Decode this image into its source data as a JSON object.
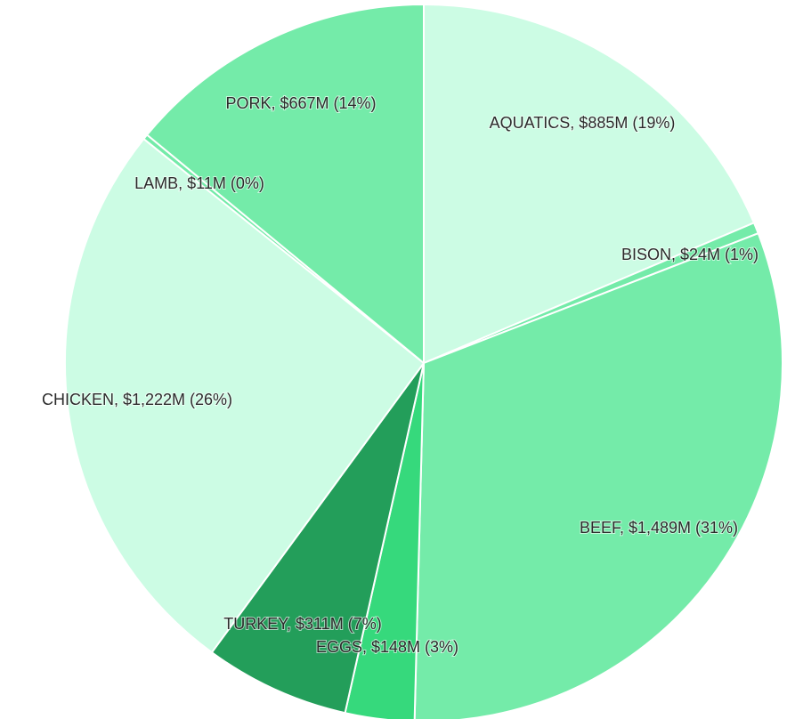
{
  "chart_data": {
    "type": "pie",
    "values": [
      885,
      24,
      1489,
      148,
      311,
      1222,
      11,
      667
    ],
    "value_labels": [
      "AQUATICS, $885M (19%)",
      "BISON, $24M (1%)",
      "BEEF, $1,489M (31%)",
      "EGGS, $148M (3%)",
      "TURKEY, $311M (7%)",
      "CHICKEN, $1,222M (26%)",
      "LAMB, $11M (0%)",
      "PORK, $667M (14%)"
    ],
    "colors": [
      "#ccfce4",
      "#74eba9",
      "#74eba9",
      "#36d97c",
      "#239e5a",
      "#ccfce4",
      "#74eba9",
      "#74eba9"
    ]
  }
}
